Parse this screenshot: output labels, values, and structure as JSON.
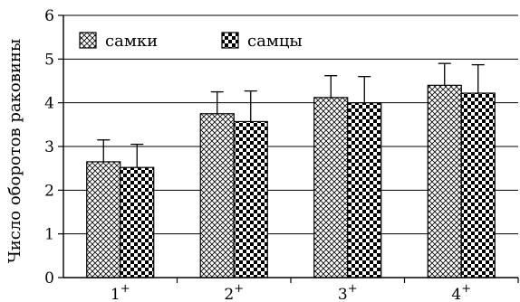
{
  "chart_data": {
    "type": "bar",
    "categories": [
      "1",
      "2",
      "3",
      "4"
    ],
    "category_superscript": "+",
    "ylabel": "Число оборотов раковины",
    "xlabel": "",
    "ylim": [
      0,
      6
    ],
    "yticks": [
      "0",
      "1",
      "2",
      "3",
      "4",
      "5",
      "6"
    ],
    "grid": "horizontal",
    "legend_position": "top-left",
    "series": [
      {
        "name": "самки",
        "pattern": "crosshatch",
        "values": [
          2.65,
          3.75,
          4.12,
          4.4
        ],
        "errors": [
          0.5,
          0.5,
          0.5,
          0.5
        ]
      },
      {
        "name": "самцы",
        "pattern": "checkerboard",
        "values": [
          2.52,
          3.57,
          4.0,
          4.22
        ],
        "errors": [
          0.53,
          0.7,
          0.6,
          0.65
        ]
      }
    ]
  }
}
